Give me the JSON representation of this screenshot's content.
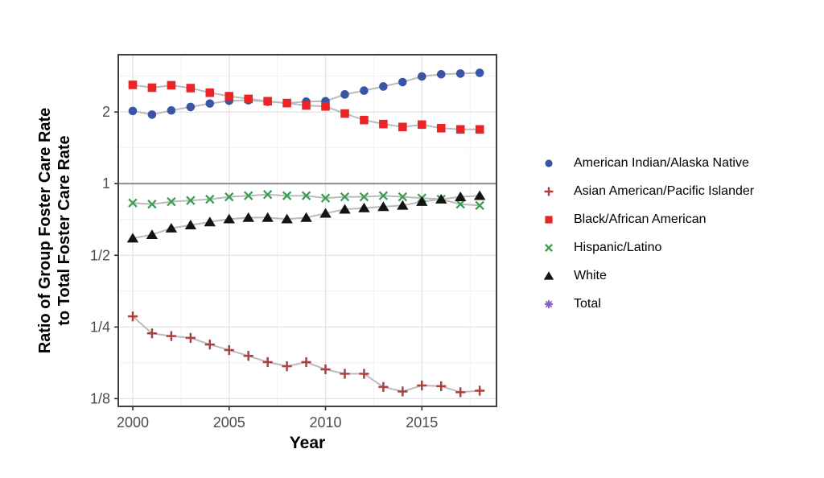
{
  "chart_data": {
    "type": "line",
    "title": "",
    "xlabel": "Year",
    "ylabel_lines": [
      "Ratio of Group Foster Care Rate",
      "to Total Foster Care Rate"
    ],
    "x": [
      2000,
      2001,
      2002,
      2003,
      2004,
      2005,
      2006,
      2007,
      2008,
      2009,
      2010,
      2011,
      2012,
      2013,
      2014,
      2015,
      2016,
      2017,
      2018
    ],
    "series": [
      {
        "name": "American Indian/Alaska Native",
        "marker": "circle",
        "color": "#3A55A4",
        "values": [
          2.02,
          1.95,
          2.03,
          2.1,
          2.17,
          2.23,
          2.24,
          2.21,
          2.18,
          2.21,
          2.22,
          2.37,
          2.46,
          2.56,
          2.67,
          2.82,
          2.88,
          2.9,
          2.92
        ]
      },
      {
        "name": "Asian American/Pacific Islander",
        "marker": "plus",
        "color": "#AE403E",
        "values": [
          0.277,
          0.235,
          0.229,
          0.225,
          0.211,
          0.2,
          0.189,
          0.178,
          0.171,
          0.178,
          0.166,
          0.159,
          0.159,
          0.14,
          0.134,
          0.142,
          0.141,
          0.133,
          0.135
        ]
      },
      {
        "name": "Black/African American",
        "marker": "square",
        "color": "#EB2428",
        "values": [
          2.6,
          2.53,
          2.59,
          2.52,
          2.41,
          2.33,
          2.27,
          2.22,
          2.18,
          2.13,
          2.11,
          1.97,
          1.85,
          1.78,
          1.73,
          1.77,
          1.71,
          1.69,
          1.69
        ]
      },
      {
        "name": "Hispanic/Latino",
        "marker": "x",
        "color": "#3C9E52",
        "values": [
          0.83,
          0.82,
          0.84,
          0.85,
          0.86,
          0.88,
          0.89,
          0.9,
          0.89,
          0.89,
          0.87,
          0.88,
          0.88,
          0.89,
          0.88,
          0.87,
          0.86,
          0.82,
          0.81
        ]
      },
      {
        "name": "White",
        "marker": "triangle",
        "color": "#141414",
        "values": [
          0.59,
          0.61,
          0.65,
          0.67,
          0.69,
          0.71,
          0.72,
          0.72,
          0.71,
          0.72,
          0.75,
          0.78,
          0.79,
          0.8,
          0.81,
          0.84,
          0.86,
          0.88,
          0.89
        ]
      },
      {
        "name": "Total",
        "marker": "asterisk",
        "color": "#8B5FBF",
        "reference_line": true,
        "values": [
          1,
          1,
          1,
          1,
          1,
          1,
          1,
          1,
          1,
          1,
          1,
          1,
          1,
          1,
          1,
          1,
          1,
          1,
          1
        ]
      }
    ],
    "y_scale": "log2",
    "y_ticks": [
      {
        "label": "2",
        "value": 2
      },
      {
        "label": "1",
        "value": 1
      },
      {
        "label": "1/2",
        "value": 0.5
      },
      {
        "label": "1/4",
        "value": 0.25
      },
      {
        "label": "1/8",
        "value": 0.125
      }
    ],
    "y_minor_values": [
      2.828,
      1.414,
      0.707,
      0.354,
      0.177
    ],
    "x_ticks": [
      2000,
      2005,
      2010,
      2015
    ],
    "x_minor_ticks": [
      2002.5,
      2007.5,
      2012.5,
      2017.5
    ],
    "xlim": [
      1999.25,
      2018.87
    ],
    "ylim": [
      0.116,
      3.48
    ],
    "grid": true,
    "legend_position": "right",
    "colors": {
      "series_line": "#BBBBBB",
      "reference_line": "#7E7E7E",
      "panel_border": "#404040",
      "grid_major": "#E3E3E3",
      "grid_minor": "#F1F1F1",
      "tick_text": "#4D4D4D",
      "axis_title": "#000000",
      "background": "#FFFFFF"
    }
  }
}
